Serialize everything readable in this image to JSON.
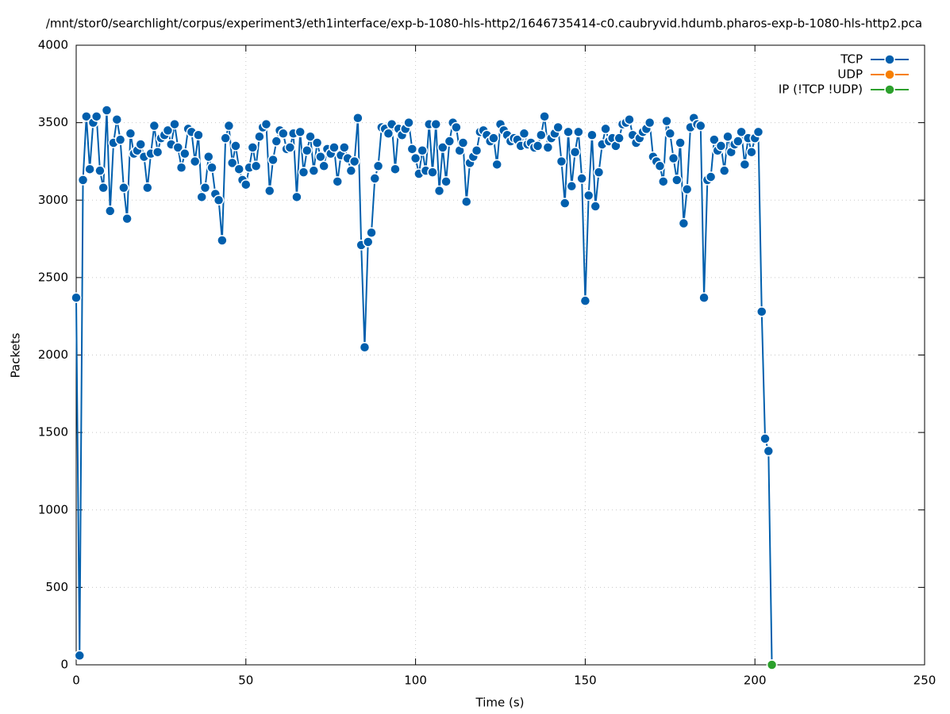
{
  "chart_data": {
    "type": "line",
    "title": "/mnt/stor0/searchlight/corpus/experiment3/eth1interface/exp-b-1080-hls-http2/1646735414-c0.caubryvid.hdumb.pharos-exp-b-1080-hls-http2.pca",
    "x_label": "Time (s)",
    "y_label": "Packets",
    "xlim": [
      0,
      250
    ],
    "xticks": [
      0,
      50,
      100,
      150,
      200,
      250
    ],
    "ylim": [
      0,
      4000
    ],
    "yticks": [
      0,
      500,
      1000,
      1500,
      2000,
      2500,
      3000,
      3500,
      4000
    ],
    "grid": true,
    "legend": "top-right",
    "series": [
      {
        "name": "TCP",
        "color": "#005fad",
        "x": [
          0,
          1,
          2,
          3,
          4,
          5,
          6,
          7,
          8,
          9,
          10,
          11,
          12,
          13,
          14,
          15,
          16,
          17,
          18,
          19,
          20,
          21,
          22,
          23,
          24,
          25,
          26,
          27,
          28,
          29,
          30,
          31,
          32,
          33,
          34,
          35,
          36,
          37,
          38,
          39,
          40,
          41,
          42,
          43,
          44,
          45,
          46,
          47,
          48,
          49,
          50,
          51,
          52,
          53,
          54,
          55,
          56,
          57,
          58,
          59,
          60,
          61,
          62,
          63,
          64,
          65,
          66,
          67,
          68,
          69,
          70,
          71,
          72,
          73,
          74,
          75,
          76,
          77,
          78,
          79,
          80,
          81,
          82,
          83,
          84,
          85,
          86,
          87,
          88,
          89,
          90,
          91,
          92,
          93,
          94,
          95,
          96,
          97,
          98,
          99,
          100,
          101,
          102,
          103,
          104,
          105,
          106,
          107,
          108,
          109,
          110,
          111,
          112,
          113,
          114,
          115,
          116,
          117,
          118,
          119,
          120,
          121,
          122,
          123,
          124,
          125,
          126,
          127,
          128,
          129,
          130,
          131,
          132,
          133,
          134,
          135,
          136,
          137,
          138,
          139,
          140,
          141,
          142,
          143,
          144,
          145,
          146,
          147,
          148,
          149,
          150,
          151,
          152,
          153,
          154,
          155,
          156,
          157,
          158,
          159,
          160,
          161,
          162,
          163,
          164,
          165,
          166,
          167,
          168,
          169,
          170,
          171,
          172,
          173,
          174,
          175,
          176,
          177,
          178,
          179,
          180,
          181,
          182,
          183,
          184,
          185,
          186,
          187,
          188,
          189,
          190,
          191,
          192,
          193,
          194,
          195,
          196,
          197,
          198,
          199,
          200,
          201,
          202,
          203,
          204,
          205
        ],
        "values": [
          2370,
          60,
          3130,
          3540,
          3200,
          3500,
          3540,
          3190,
          3080,
          3580,
          2930,
          3370,
          3520,
          3390,
          3080,
          2880,
          3430,
          3300,
          3320,
          3360,
          3280,
          3080,
          3300,
          3480,
          3310,
          3400,
          3420,
          3450,
          3360,
          3490,
          3340,
          3210,
          3300,
          3460,
          3440,
          3250,
          3420,
          3020,
          3080,
          3280,
          3210,
          3040,
          3000,
          2740,
          3400,
          3480,
          3240,
          3350,
          3200,
          3130,
          3100,
          3210,
          3340,
          3220,
          3410,
          3470,
          3490,
          3060,
          3260,
          3380,
          3450,
          3430,
          3330,
          3340,
          3430,
          3020,
          3440,
          3180,
          3320,
          3410,
          3190,
          3370,
          3280,
          3220,
          3330,
          3300,
          3340,
          3120,
          3290,
          3340,
          3270,
          3190,
          3250,
          3530,
          2710,
          2050,
          2730,
          2790,
          3140,
          3220,
          3470,
          3460,
          3430,
          3490,
          3200,
          3460,
          3420,
          3460,
          3500,
          3330,
          3270,
          3170,
          3320,
          3190,
          3490,
          3180,
          3490,
          3060,
          3340,
          3120,
          3380,
          3500,
          3470,
          3320,
          3370,
          2990,
          3240,
          3280,
          3320,
          3440,
          3450,
          3420,
          3380,
          3400,
          3230,
          3490,
          3450,
          3420,
          3380,
          3400,
          3390,
          3350,
          3430,
          3360,
          3370,
          3340,
          3350,
          3420,
          3540,
          3340,
          3400,
          3430,
          3470,
          3250,
          2980,
          3440,
          3090,
          3310,
          3440,
          3140,
          2350,
          3030,
          3420,
          2960,
          3180,
          3360,
          3460,
          3380,
          3400,
          3350,
          3400,
          3490,
          3500,
          3520,
          3420,
          3370,
          3400,
          3440,
          3460,
          3500,
          3280,
          3250,
          3220,
          3120,
          3510,
          3430,
          3270,
          3130,
          3370,
          2850,
          3070,
          3470,
          3530,
          3490,
          3480,
          2370,
          3130,
          3150,
          3390,
          3320,
          3350,
          3190,
          3410,
          3310,
          3360,
          3380,
          3440,
          3230,
          3400,
          3310,
          3400,
          3440,
          2280,
          1460,
          1380,
          0
        ]
      },
      {
        "name": "UDP",
        "color": "#f77f00",
        "x": [
          205
        ],
        "values": [
          0
        ]
      },
      {
        "name": "IP (!TCP  !UDP)",
        "color": "#2ca02c",
        "x": [
          205
        ],
        "values": [
          0
        ]
      }
    ]
  }
}
